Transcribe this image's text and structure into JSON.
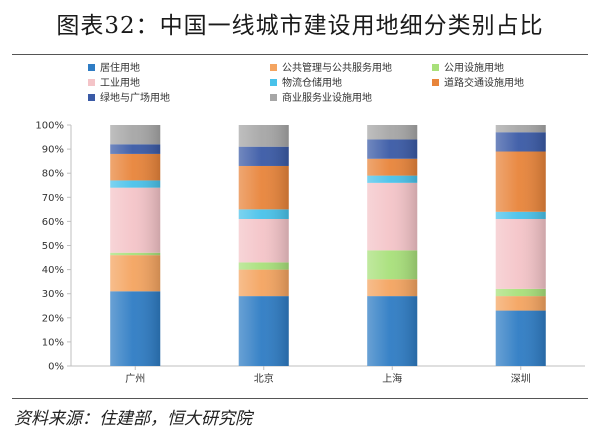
{
  "header": {
    "title": "图表32：中国一线城市建设用地细分类别占比"
  },
  "footer": {
    "source": "资料来源：住建部，恒大研究院"
  },
  "chart_data": {
    "type": "bar",
    "stacked": true,
    "title": "图表32：中国一线城市建设用地细分类别占比",
    "xlabel": "",
    "ylabel": "",
    "ylim": [
      0,
      100
    ],
    "yticks": [
      "0%",
      "10%",
      "20%",
      "30%",
      "40%",
      "50%",
      "60%",
      "70%",
      "80%",
      "90%",
      "100%"
    ],
    "grid": false,
    "legend_position": "top",
    "categories": [
      "广州",
      "北京",
      "上海",
      "深圳"
    ],
    "series": [
      {
        "name": "居住用地",
        "color": "#2e7cc4",
        "values": [
          31,
          29,
          29,
          23
        ]
      },
      {
        "name": "公共管理与公共服务用地",
        "color": "#f4a460",
        "values": [
          15,
          11,
          7,
          6
        ]
      },
      {
        "name": "公用设施用地",
        "color": "#a8e07a",
        "values": [
          1,
          3,
          12,
          3
        ]
      },
      {
        "name": "工业用地",
        "color": "#f4c4c8",
        "values": [
          27,
          18,
          28,
          29
        ]
      },
      {
        "name": "物流仓储用地",
        "color": "#49c2ea",
        "values": [
          3,
          4,
          3,
          3
        ]
      },
      {
        "name": "道路交通设施用地",
        "color": "#e8843a",
        "values": [
          11,
          18,
          7,
          25
        ]
      },
      {
        "name": "绿地与广场用地",
        "color": "#3a5aa6",
        "values": [
          4,
          8,
          8,
          8
        ]
      },
      {
        "name": "商业服务业设施用地",
        "color": "#a6a6a6",
        "values": [
          8,
          9,
          6,
          3
        ]
      }
    ]
  }
}
